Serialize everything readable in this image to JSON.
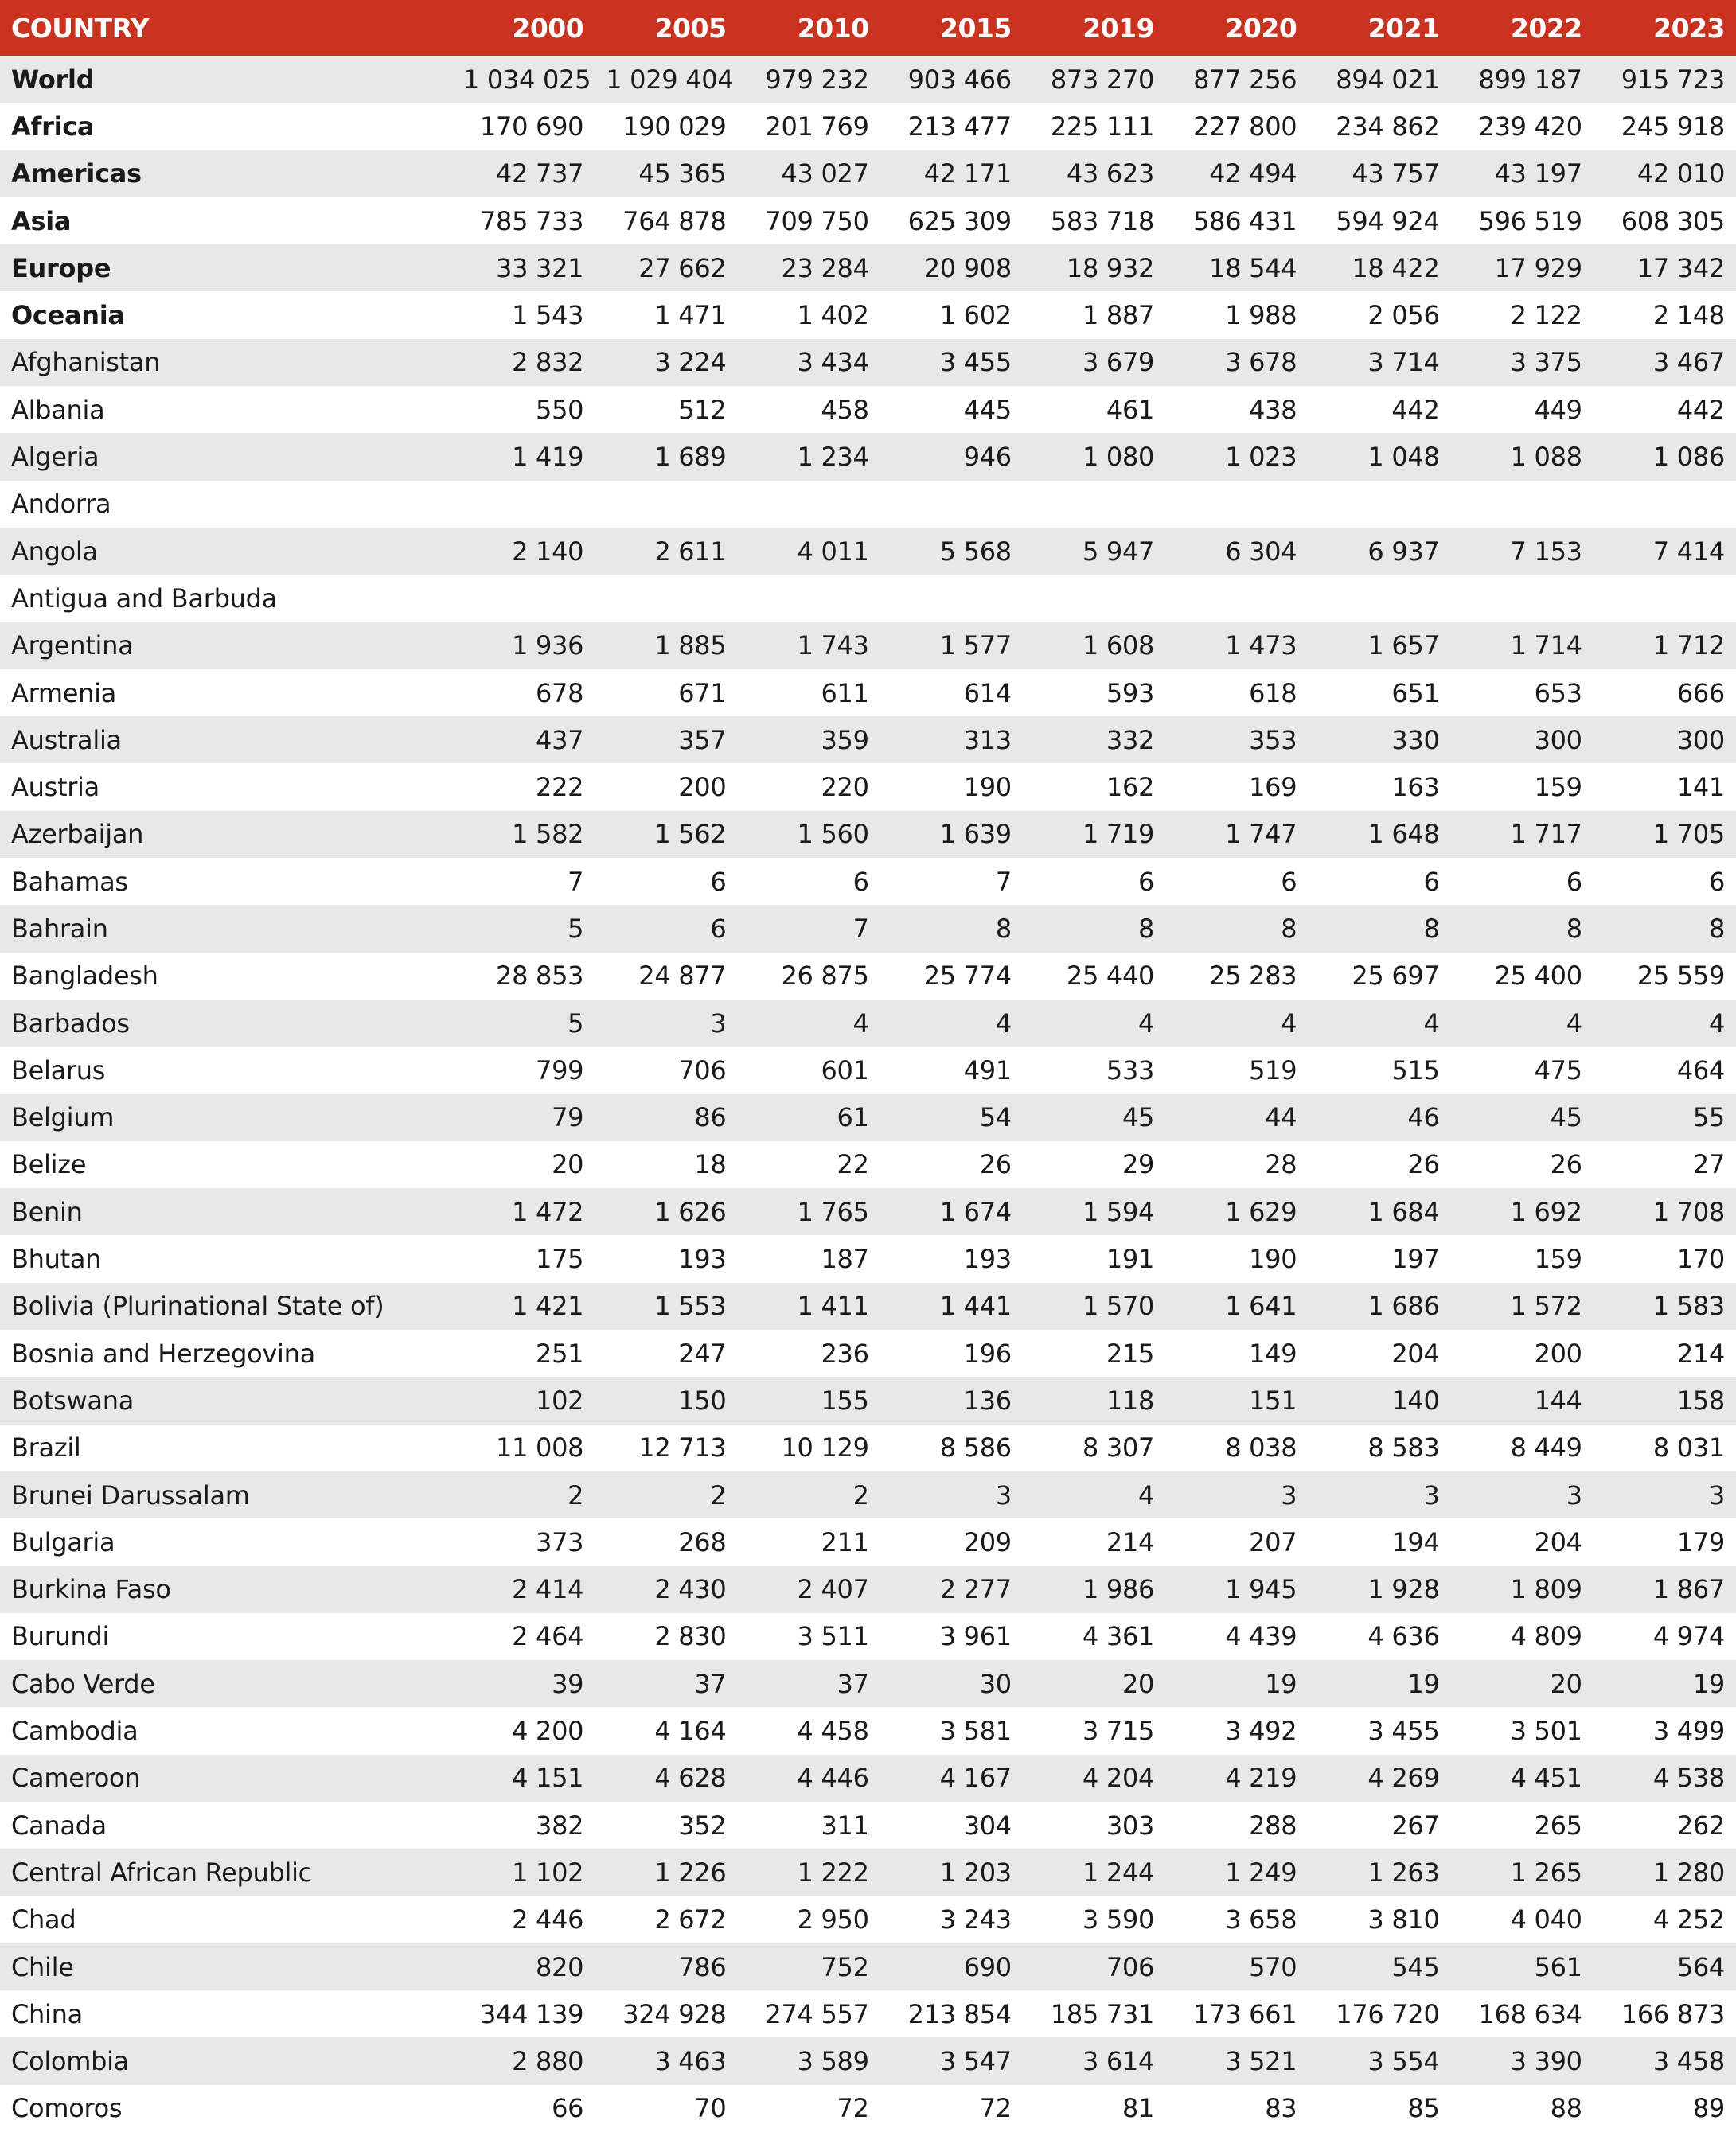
{
  "table": {
    "header": [
      "COUNTRY",
      "2000",
      "2005",
      "2010",
      "2015",
      "2019",
      "2020",
      "2021",
      "2022",
      "2023"
    ],
    "rows": [
      {
        "country": "World",
        "bold": true,
        "values": [
          "1 034 025",
          "1 029 404",
          "979 232",
          "903 466",
          "873 270",
          "877 256",
          "894 021",
          "899 187",
          "915 723"
        ]
      },
      {
        "country": "Africa",
        "bold": true,
        "values": [
          "170 690",
          "190 029",
          "201 769",
          "213 477",
          "225 111",
          "227 800",
          "234 862",
          "239 420",
          "245 918"
        ]
      },
      {
        "country": "Americas",
        "bold": true,
        "values": [
          "42 737",
          "45 365",
          "43 027",
          "42 171",
          "43 623",
          "42 494",
          "43 757",
          "43 197",
          "42 010"
        ]
      },
      {
        "country": "Asia",
        "bold": true,
        "values": [
          "785 733",
          "764 878",
          "709 750",
          "625 309",
          "583 718",
          "586 431",
          "594 924",
          "596 519",
          "608 305"
        ]
      },
      {
        "country": "Europe",
        "bold": true,
        "values": [
          "33 321",
          "27 662",
          "23 284",
          "20 908",
          "18 932",
          "18 544",
          "18 422",
          "17 929",
          "17 342"
        ]
      },
      {
        "country": "Oceania",
        "bold": true,
        "values": [
          "1 543",
          "1 471",
          "1 402",
          "1 602",
          "1 887",
          "1 988",
          "2 056",
          "2 122",
          "2 148"
        ]
      },
      {
        "country": "Afghanistan",
        "values": [
          "2 832",
          "3 224",
          "3 434",
          "3 455",
          "3 679",
          "3 678",
          "3 714",
          "3 375",
          "3 467"
        ]
      },
      {
        "country": "Albania",
        "values": [
          "550",
          "512",
          "458",
          "445",
          "461",
          "438",
          "442",
          "449",
          "442"
        ]
      },
      {
        "country": "Algeria",
        "values": [
          "1 419",
          "1 689",
          "1 234",
          "946",
          "1 080",
          "1 023",
          "1 048",
          "1 088",
          "1 086"
        ]
      },
      {
        "country": "Andorra",
        "values": []
      },
      {
        "country": "Angola",
        "values": [
          "2 140",
          "2 611",
          "4 011",
          "5 568",
          "5 947",
          "6 304",
          "6 937",
          "7 153",
          "7 414"
        ]
      },
      {
        "country": "Antigua and Barbuda",
        "values": []
      },
      {
        "country": "Argentina",
        "values": [
          "1 936",
          "1 885",
          "1 743",
          "1 577",
          "1 608",
          "1 473",
          "1 657",
          "1 714",
          "1 712"
        ]
      },
      {
        "country": "Armenia",
        "values": [
          "678",
          "671",
          "611",
          "614",
          "593",
          "618",
          "651",
          "653",
          "666"
        ]
      },
      {
        "country": "Australia",
        "values": [
          "437",
          "357",
          "359",
          "313",
          "332",
          "353",
          "330",
          "300",
          "300"
        ]
      },
      {
        "country": "Austria",
        "values": [
          "222",
          "200",
          "220",
          "190",
          "162",
          "169",
          "163",
          "159",
          "141"
        ]
      },
      {
        "country": "Azerbaijan",
        "values": [
          "1 582",
          "1 562",
          "1 560",
          "1 639",
          "1 719",
          "1 747",
          "1 648",
          "1 717",
          "1 705"
        ]
      },
      {
        "country": "Bahamas",
        "values": [
          "7",
          "6",
          "6",
          "7",
          "6",
          "6",
          "6",
          "6",
          "6"
        ]
      },
      {
        "country": "Bahrain",
        "values": [
          "5",
          "6",
          "7",
          "8",
          "8",
          "8",
          "8",
          "8",
          "8"
        ]
      },
      {
        "country": "Bangladesh",
        "values": [
          "28 853",
          "24 877",
          "26 875",
          "25 774",
          "25 440",
          "25 283",
          "25 697",
          "25 400",
          "25 559"
        ]
      },
      {
        "country": "Barbados",
        "values": [
          "5",
          "3",
          "4",
          "4",
          "4",
          "4",
          "4",
          "4",
          "4"
        ]
      },
      {
        "country": "Belarus",
        "values": [
          "799",
          "706",
          "601",
          "491",
          "533",
          "519",
          "515",
          "475",
          "464"
        ]
      },
      {
        "country": "Belgium",
        "values": [
          "79",
          "86",
          "61",
          "54",
          "45",
          "44",
          "46",
          "45",
          "55"
        ]
      },
      {
        "country": "Belize",
        "values": [
          "20",
          "18",
          "22",
          "26",
          "29",
          "28",
          "26",
          "26",
          "27"
        ]
      },
      {
        "country": "Benin",
        "values": [
          "1 472",
          "1 626",
          "1 765",
          "1 674",
          "1 594",
          "1 629",
          "1 684",
          "1 692",
          "1 708"
        ]
      },
      {
        "country": "Bhutan",
        "values": [
          "175",
          "193",
          "187",
          "193",
          "191",
          "190",
          "197",
          "159",
          "170"
        ]
      },
      {
        "country": "Bolivia (Plurinational State of)",
        "values": [
          "1 421",
          "1 553",
          "1 411",
          "1 441",
          "1 570",
          "1 641",
          "1 686",
          "1 572",
          "1 583"
        ]
      },
      {
        "country": "Bosnia and Herzegovina",
        "values": [
          "251",
          "247",
          "236",
          "196",
          "215",
          "149",
          "204",
          "200",
          "214"
        ]
      },
      {
        "country": "Botswana",
        "values": [
          "102",
          "150",
          "155",
          "136",
          "118",
          "151",
          "140",
          "144",
          "158"
        ]
      },
      {
        "country": "Brazil",
        "values": [
          "11 008",
          "12 713",
          "10 129",
          "8 586",
          "8 307",
          "8 038",
          "8 583",
          "8 449",
          "8 031"
        ]
      },
      {
        "country": "Brunei Darussalam",
        "values": [
          "2",
          "2",
          "2",
          "3",
          "4",
          "3",
          "3",
          "3",
          "3"
        ]
      },
      {
        "country": "Bulgaria",
        "values": [
          "373",
          "268",
          "211",
          "209",
          "214",
          "207",
          "194",
          "204",
          "179"
        ]
      },
      {
        "country": "Burkina Faso",
        "values": [
          "2 414",
          "2 430",
          "2 407",
          "2 277",
          "1 986",
          "1 945",
          "1 928",
          "1 809",
          "1 867"
        ]
      },
      {
        "country": "Burundi",
        "values": [
          "2 464",
          "2 830",
          "3 511",
          "3 961",
          "4 361",
          "4 439",
          "4 636",
          "4 809",
          "4 974"
        ]
      },
      {
        "country": "Cabo Verde",
        "values": [
          "39",
          "37",
          "37",
          "30",
          "20",
          "19",
          "19",
          "20",
          "19"
        ]
      },
      {
        "country": "Cambodia",
        "values": [
          "4 200",
          "4 164",
          "4 458",
          "3 581",
          "3 715",
          "3 492",
          "3 455",
          "3 501",
          "3 499"
        ]
      },
      {
        "country": "Cameroon",
        "values": [
          "4 151",
          "4 628",
          "4 446",
          "4 167",
          "4 204",
          "4 219",
          "4 269",
          "4 451",
          "4 538"
        ]
      },
      {
        "country": "Canada",
        "values": [
          "382",
          "352",
          "311",
          "304",
          "303",
          "288",
          "267",
          "265",
          "262"
        ]
      },
      {
        "country": "Central African Republic",
        "values": [
          "1 102",
          "1 226",
          "1 222",
          "1 203",
          "1 244",
          "1 249",
          "1 263",
          "1 265",
          "1 280"
        ]
      },
      {
        "country": "Chad",
        "values": [
          "2 446",
          "2 672",
          "2 950",
          "3 243",
          "3 590",
          "3 658",
          "3 810",
          "4 040",
          "4 252"
        ]
      },
      {
        "country": "Chile",
        "values": [
          "820",
          "786",
          "752",
          "690",
          "706",
          "570",
          "545",
          "561",
          "564"
        ]
      },
      {
        "country": "China",
        "values": [
          "344 139",
          "324 928",
          "274 557",
          "213 854",
          "185 731",
          "173 661",
          "176 720",
          "168 634",
          "166 873"
        ]
      },
      {
        "country": "Colombia",
        "values": [
          "2 880",
          "3 463",
          "3 589",
          "3 547",
          "3 614",
          "3 521",
          "3 554",
          "3 390",
          "3 458"
        ]
      },
      {
        "country": "Comoros",
        "values": [
          "66",
          "70",
          "72",
          "72",
          "81",
          "83",
          "85",
          "88",
          "89"
        ]
      }
    ]
  }
}
